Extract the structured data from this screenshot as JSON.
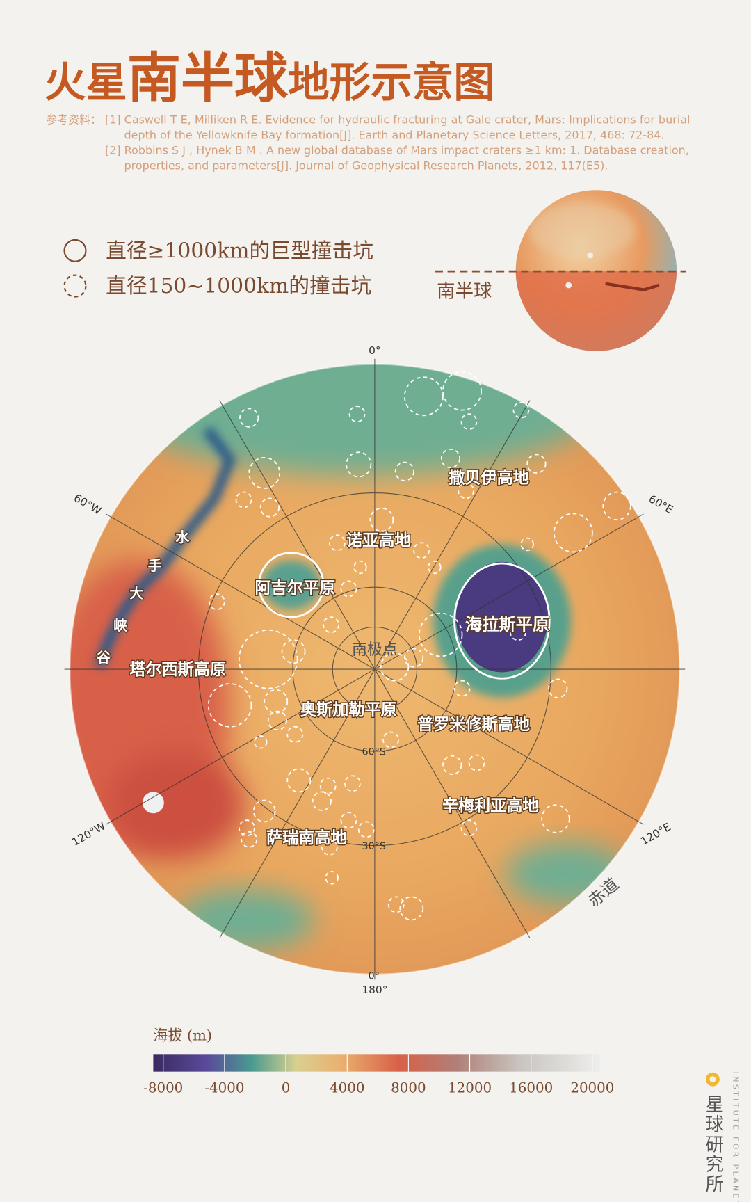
{
  "title": {
    "part1": "火星",
    "part2": "南半球",
    "part3": "地形示意图"
  },
  "references": {
    "label": "参考资料：",
    "items": [
      [
        "[1] Caswell T E, Milliken R E. Evidence for hydraulic fracturing at Gale crater, Mars: Implications for burial",
        "depth of the Yellowknife Bay formation[J]. Earth and Planetary Science Letters, 2017, 468: 72-84."
      ],
      [
        "[2] Robbins S J ,  Hynek B M . A new global database of Mars impact craters ≥1 km: 1. Database creation,",
        "properties, and parameters[J]. Journal of Geophysical Research Planets, 2012, 117(E5)."
      ]
    ]
  },
  "legend": [
    "直径≥1000km的巨型撞击坑",
    "直径150~1000km的撞击坑"
  ],
  "globe_label": "南半球",
  "map": {
    "longitude_labels": [
      "0°",
      "60°E",
      "120°E",
      "180°",
      "120°W",
      "60°W"
    ],
    "latitude_labels": [
      "60°S",
      "30°S",
      "0°"
    ],
    "regions": [
      "撒贝伊高地",
      "诺亚高地",
      "阿吉尔平原",
      "海拉斯平原",
      "南极点",
      "塔尔西斯高原",
      "奥斯加勒平原",
      "普罗米修斯高地",
      "辛梅利亚高地",
      "萨瑞南高地"
    ],
    "valley": [
      "水",
      "手",
      "大",
      "峡",
      "谷"
    ],
    "equator": "赤道"
  },
  "colorbar": {
    "title": "海拔 (m)",
    "ticks": [
      -8000,
      -4000,
      0,
      4000,
      8000,
      12000,
      16000,
      20000
    ]
  },
  "brand": {
    "name": "星球研究所",
    "english": "INSTITUTE FOR PLANETS"
  }
}
